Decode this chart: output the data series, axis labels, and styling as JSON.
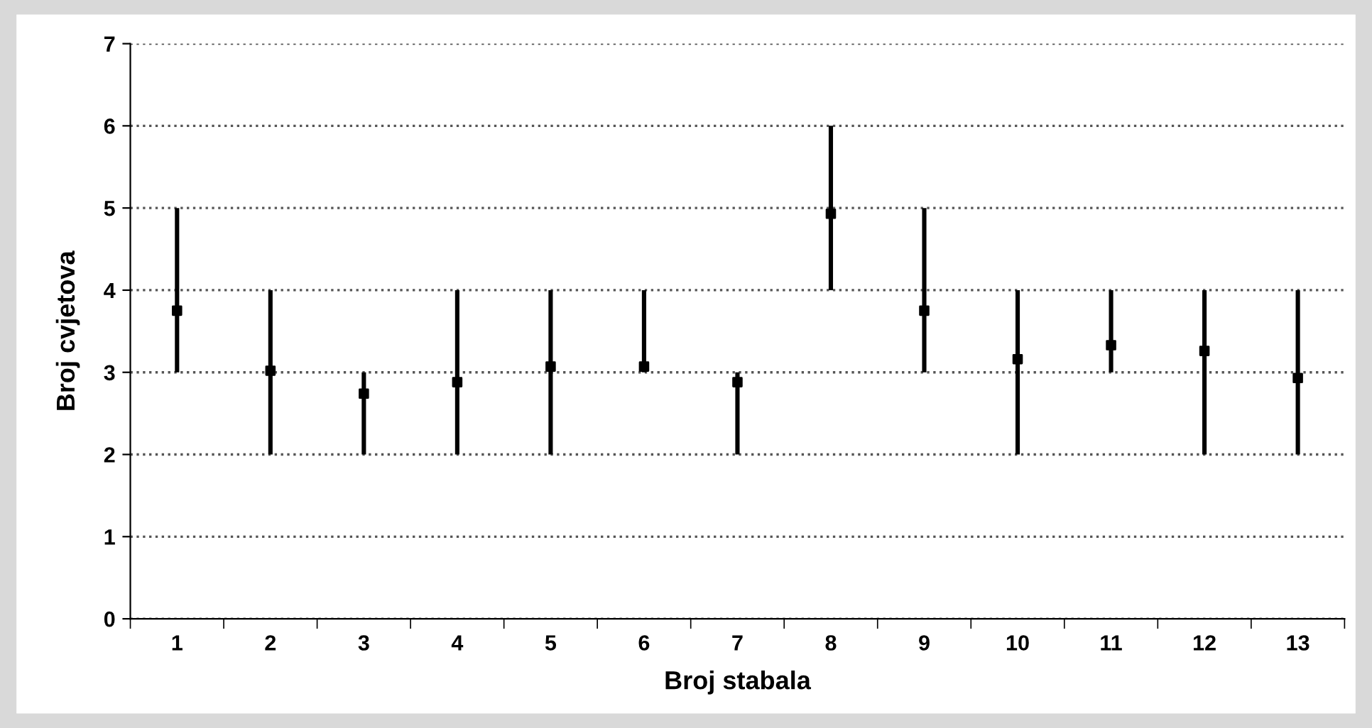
{
  "chart_data": {
    "type": "scatter",
    "xlabel": "Broj stabala",
    "ylabel": "Broj cvjetova",
    "categories": [
      "1",
      "2",
      "3",
      "4",
      "5",
      "6",
      "7",
      "8",
      "9",
      "10",
      "11",
      "12",
      "13"
    ],
    "values": [
      3.75,
      3.02,
      2.74,
      2.88,
      3.07,
      3.07,
      2.88,
      4.93,
      3.75,
      3.16,
      3.33,
      3.26,
      2.93
    ],
    "errors": [
      [
        3,
        5
      ],
      [
        2,
        4
      ],
      [
        2,
        3
      ],
      [
        2,
        4
      ],
      [
        2,
        4
      ],
      [
        3,
        4
      ],
      [
        2,
        3
      ],
      [
        4,
        6
      ],
      [
        3,
        5
      ],
      [
        2,
        4
      ],
      [
        3,
        4
      ],
      [
        2,
        4
      ],
      [
        2,
        4
      ]
    ],
    "color": "#000000",
    "marker": "square",
    "ylim": [
      0,
      7
    ],
    "yticks": [
      0,
      1,
      2,
      3,
      4,
      5,
      6,
      7
    ],
    "grid": "y"
  }
}
